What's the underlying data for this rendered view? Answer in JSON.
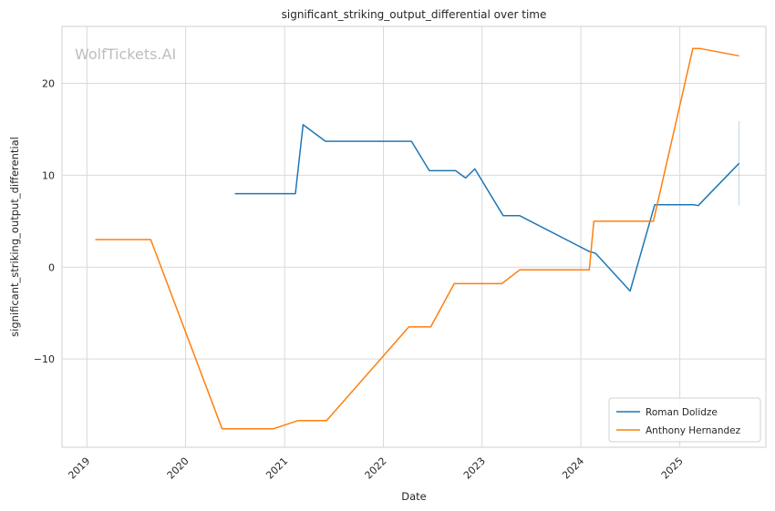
{
  "chart_data": {
    "type": "line",
    "title": "significant_striking_output_differential over time",
    "xlabel": "Date",
    "ylabel": "significant_striking_output_differential",
    "watermark": "WolfTickets.AI",
    "x_ticks": [
      "2019",
      "2020",
      "2021",
      "2022",
      "2023",
      "2024",
      "2025"
    ],
    "y_ticks": [
      {
        "value": 20,
        "label": "20"
      },
      {
        "value": 10,
        "label": "10"
      },
      {
        "value": 0,
        "label": "0"
      },
      {
        "value": -10,
        "label": "−10"
      }
    ],
    "xlim": [
      "2018-10-01",
      "2025-11-15"
    ],
    "ylim": [
      -19.6,
      26.2
    ],
    "grid": true,
    "legend_position": "lower-right",
    "series": [
      {
        "name": "Roman Dolidze",
        "color": "#1f77b4",
        "points": [
          [
            "2020-07-01",
            8.0
          ],
          [
            "2021-02-10",
            8.0
          ],
          [
            "2021-03-10",
            15.5
          ],
          [
            "2021-06-01",
            13.7
          ],
          [
            "2022-04-15",
            13.7
          ],
          [
            "2022-06-20",
            10.5
          ],
          [
            "2022-09-25",
            10.5
          ],
          [
            "2022-11-01",
            9.7
          ],
          [
            "2022-12-05",
            10.7
          ],
          [
            "2023-03-20",
            5.6
          ],
          [
            "2023-05-20",
            5.6
          ],
          [
            "2024-02-01",
            1.7
          ],
          [
            "2024-02-25",
            1.5
          ],
          [
            "2024-07-01",
            -2.6
          ],
          [
            "2024-09-30",
            6.8
          ],
          [
            "2025-02-20",
            6.8
          ],
          [
            "2025-03-10",
            6.7
          ],
          [
            "2025-08-08",
            11.3
          ]
        ],
        "error_bar": {
          "x": "2025-08-08",
          "low": 6.7,
          "high": 15.9
        }
      },
      {
        "name": "Anthony Hernandez",
        "color": "#ff7f0e",
        "points": [
          [
            "2019-02-01",
            3.0
          ],
          [
            "2019-08-25",
            3.0
          ],
          [
            "2020-05-15",
            -17.6
          ],
          [
            "2020-11-20",
            -17.6
          ],
          [
            "2021-02-20",
            -16.7
          ],
          [
            "2021-06-05",
            -16.7
          ],
          [
            "2022-04-05",
            -6.5
          ],
          [
            "2022-06-25",
            -6.5
          ],
          [
            "2022-09-20",
            -1.8
          ],
          [
            "2023-03-15",
            -1.8
          ],
          [
            "2023-05-20",
            -0.3
          ],
          [
            "2024-02-01",
            -0.3
          ],
          [
            "2024-02-18",
            5.0
          ],
          [
            "2024-09-25",
            5.0
          ],
          [
            "2025-02-18",
            23.8
          ],
          [
            "2025-03-15",
            23.8
          ],
          [
            "2025-08-08",
            23.0
          ]
        ]
      }
    ]
  }
}
